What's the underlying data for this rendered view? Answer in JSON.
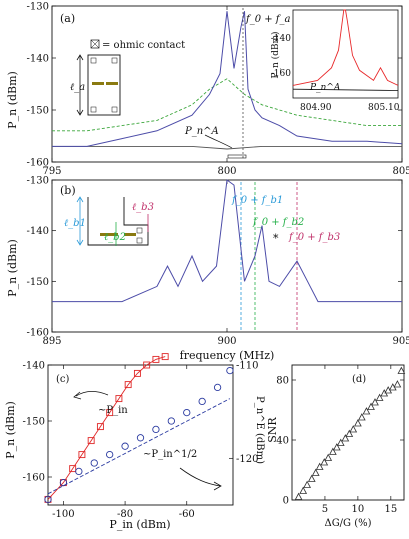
{
  "figure": {
    "panels": {
      "a": {
        "label": "(a)",
        "ylabel": "P_n (dBm)",
        "legend_text": "= ohmic contact",
        "ell_label": "ℓ_a",
        "annot_f0fa": "f_0 + f_a",
        "annot_PnA": "P_n^A",
        "inset": {
          "ylabel": "P_n (dBm)",
          "yticks": [
            "-140",
            "-160"
          ],
          "xticks": [
            "804.90",
            "805.10"
          ],
          "annot": "P_n^A"
        }
      },
      "b": {
        "label": "(b)",
        "ylabel": "P_n (dBm)",
        "xlabel": "frequency (MHz)",
        "annot_fb1": "f_0 + f_b1",
        "annot_fb2": "f_0 + f_b2",
        "annot_fb3": "f_0 + f_b3",
        "annot_star": "*",
        "ell_b1": "ℓ_b1",
        "ell_b2": "ℓ_b2",
        "ell_b3": "ℓ_b3"
      },
      "c": {
        "label": "(c)",
        "ylabel_left": "P_n (dBm)",
        "ylabel_right": "P_n^E (dBm)",
        "xlabel": "P_in (dBm)",
        "annot_lin": "~P_in",
        "annot_sqrt": "~P_in^1/2"
      },
      "d": {
        "label": "(d)",
        "ylabel": "SNR",
        "xlabel": "ΔG/G (%)"
      }
    }
  },
  "colors": {
    "blue_trace": "#4c4ca8",
    "green_dash": "#3aa63a",
    "gray_trace": "#555555",
    "red_trace": "#e8282a",
    "cyan_line": "#2a9ad8",
    "green_line": "#26b04a",
    "magenta_line": "#c0306a",
    "circle_blue": "#2a3aa0",
    "square_red": "#e02828",
    "wire": "#8a7a10"
  },
  "chart_data": [
    {
      "type": "line",
      "panel": "a",
      "xlim": [
        795,
        805
      ],
      "ylim": [
        -160,
        -130
      ],
      "xticks": [
        795,
        800,
        805
      ],
      "yticks": [
        -130,
        -140,
        -150,
        -160
      ],
      "series": [
        {
          "x": [
            795,
            796,
            797,
            798,
            799,
            799.5,
            799.8,
            800,
            800.2,
            800.4,
            800.5,
            800.6,
            800.8,
            801,
            801.5,
            802,
            803,
            804,
            805
          ],
          "y": [
            -157,
            -157,
            -155.5,
            -154,
            -151,
            -147,
            -143,
            -131,
            -142,
            -134,
            -131,
            -146,
            -150,
            -151.5,
            -153,
            -155,
            -156,
            -156,
            -156.5
          ]
        },
        {
          "x": [
            795,
            796,
            797,
            798,
            799,
            799.5,
            800,
            800.5,
            801,
            802,
            803,
            804,
            805
          ],
          "y": [
            -154,
            -154,
            -153,
            -152,
            -149,
            -146,
            -144,
            -147,
            -149,
            -151,
            -152,
            -153,
            -153
          ]
        },
        {
          "x": [
            795,
            797,
            799,
            800,
            801,
            803,
            805
          ],
          "y": [
            -157,
            -157,
            -157,
            -157.5,
            -157,
            -157,
            -157
          ]
        }
      ]
    },
    {
      "type": "line",
      "panel": "a-inset",
      "xlim": [
        804.85,
        805.15
      ],
      "ylim": [
        -165,
        -130
      ],
      "series": [
        {
          "x": [
            804.85,
            804.92,
            804.96,
            804.98,
            804.995,
            805.0,
            805.005,
            805.02,
            805.04,
            805.08,
            805.1,
            805.12,
            805.15
          ],
          "y": [
            -160,
            -158,
            -153,
            -146,
            -130,
            -130,
            -134,
            -148,
            -154,
            -158,
            -153,
            -158,
            -160
          ]
        },
        {
          "x": [
            804.85,
            805.15
          ],
          "y": [
            -161.5,
            -162
          ]
        }
      ]
    },
    {
      "type": "line",
      "panel": "b",
      "xlim": [
        895,
        905
      ],
      "ylim": [
        -160,
        -130
      ],
      "xticks": [
        895,
        900,
        905
      ],
      "yticks": [
        -130,
        -140,
        -150,
        -160
      ],
      "series": [
        {
          "x": [
            895,
            896,
            897,
            898,
            898.3,
            898.6,
            899,
            899.3,
            899.7,
            900,
            900.2,
            900.5,
            900.8,
            901,
            901.2,
            901.5,
            902,
            902.3,
            902.6,
            903,
            904,
            905
          ],
          "y": [
            -154,
            -154,
            -154,
            -151,
            -147,
            -151,
            -145,
            -150,
            -147,
            -130,
            -131,
            -150,
            -145,
            -139,
            -150,
            -151,
            -146,
            -150,
            -154,
            -154,
            -154,
            -154
          ]
        }
      ],
      "vlines": [
        900.4,
        900.8,
        902
      ]
    },
    {
      "type": "scatter",
      "panel": "c",
      "xlim": [
        -105,
        -45
      ],
      "ylim": [
        -165,
        -140
      ],
      "ylim_right": [
        -125,
        -110
      ],
      "xticks": [
        -100,
        -80,
        -60
      ],
      "yticks": [
        -140,
        -150,
        -160
      ],
      "yticks_right": [
        -110,
        -120
      ],
      "series": [
        {
          "x": [
            -105,
            -100,
            -97,
            -94,
            -91,
            -88,
            -85,
            -82,
            -79,
            -76,
            -73,
            -70,
            -67
          ],
          "y": [
            -164,
            -161,
            -158.5,
            -156,
            -153.5,
            -151,
            -148.5,
            -146,
            -143.5,
            -141.5,
            -140,
            -139,
            -138.5
          ]
        },
        {
          "x": [
            -105,
            -100,
            -95,
            -90,
            -85,
            -80,
            -75,
            -70,
            -65,
            -60,
            -55,
            -50,
            -46
          ],
          "y": [
            -164,
            -161,
            -159,
            -157.5,
            -156,
            -154.5,
            -153,
            -151.5,
            -150,
            -148.5,
            -146.5,
            -144,
            -141
          ]
        }
      ]
    },
    {
      "type": "scatter",
      "panel": "d",
      "xlim": [
        0,
        17
      ],
      "ylim": [
        0,
        90
      ],
      "xticks": [
        5,
        10,
        15
      ],
      "yticks": [
        0,
        40,
        80
      ],
      "series": [
        {
          "x": [
            1,
            1.7,
            2.3,
            3,
            3.6,
            4.2,
            4.9,
            5.5,
            6.2,
            6.8,
            7.4,
            8.1,
            8.7,
            9.3,
            10,
            10.6,
            11.3,
            12,
            12.6,
            13.3,
            14,
            14.6,
            15.3,
            16,
            16.6
          ],
          "y": [
            2,
            6,
            10,
            14,
            18,
            22,
            25,
            28,
            32,
            35,
            38,
            41,
            44,
            47,
            51,
            55,
            59,
            62,
            65,
            68,
            71,
            73,
            75,
            77,
            86
          ]
        }
      ]
    }
  ]
}
